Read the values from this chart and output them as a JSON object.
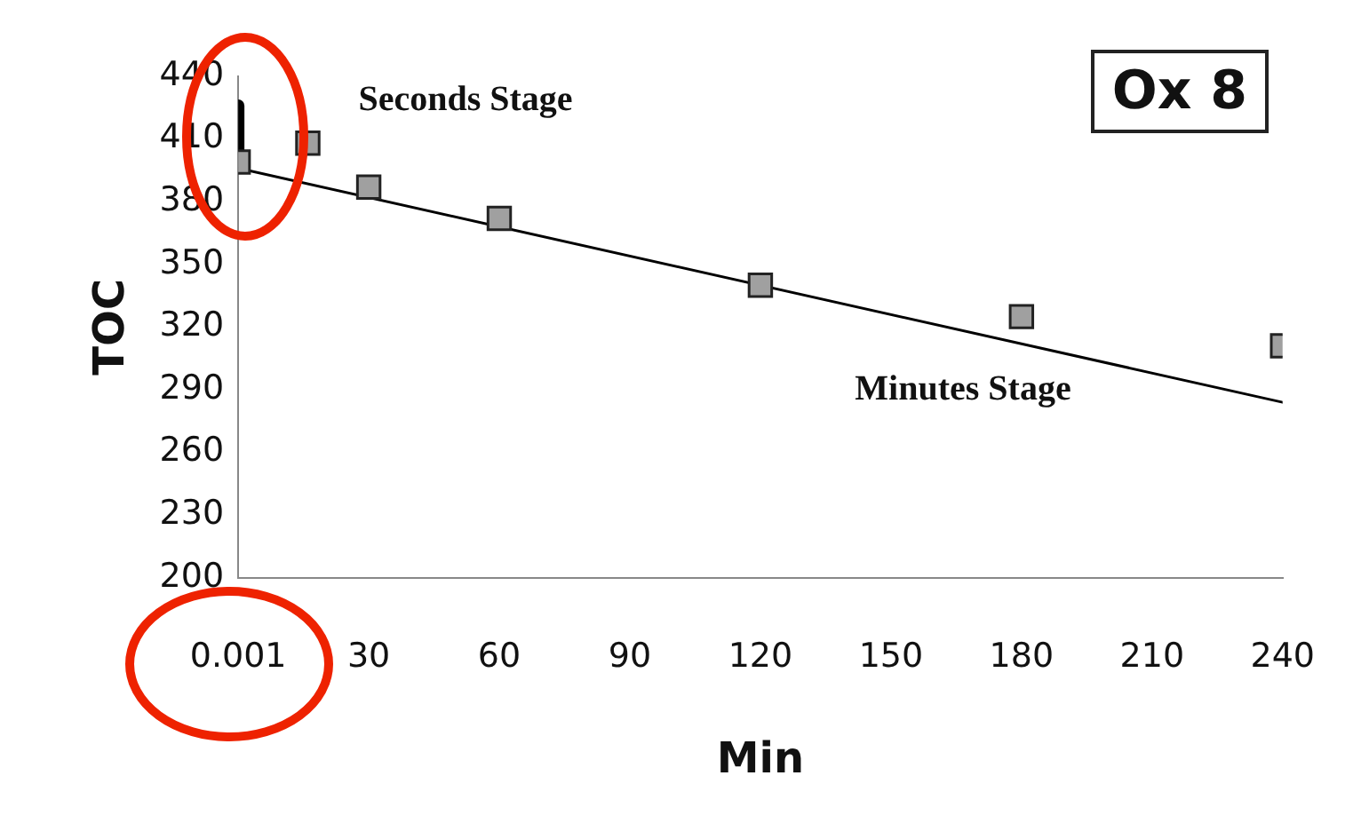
{
  "chart_data": {
    "type": "scatter",
    "xlabel": "Min",
    "ylabel": "TOC",
    "series": [
      {
        "type": "scatter",
        "color": "#a0a0a0",
        "marker": "square",
        "x": [
          0.001,
          16,
          30,
          60,
          120,
          180,
          240
        ],
        "values": [
          399,
          408,
          387,
          372,
          340,
          325,
          311
        ]
      },
      {
        "type": "line",
        "color": "#000000",
        "marker": "none",
        "x": [
          0.001,
          240
        ],
        "values": [
          396,
          284
        ]
      },
      {
        "type": "line",
        "color": "#000000",
        "marker": "none",
        "x": [
          0.001,
          0.001
        ],
        "values": [
          397,
          426
        ]
      }
    ],
    "annotations": [
      "Ox 8",
      "Seconds Stage",
      "Minutes Stage"
    ],
    "xlim": [
      0.001,
      240
    ],
    "xticks": [
      0.001,
      30,
      60,
      90,
      120,
      150,
      180,
      210,
      240
    ],
    "ylim": [
      200,
      440
    ],
    "yticks": [
      200,
      230,
      260,
      290,
      320,
      350,
      380,
      410,
      440
    ],
    "grid": false,
    "legend": false
  }
}
